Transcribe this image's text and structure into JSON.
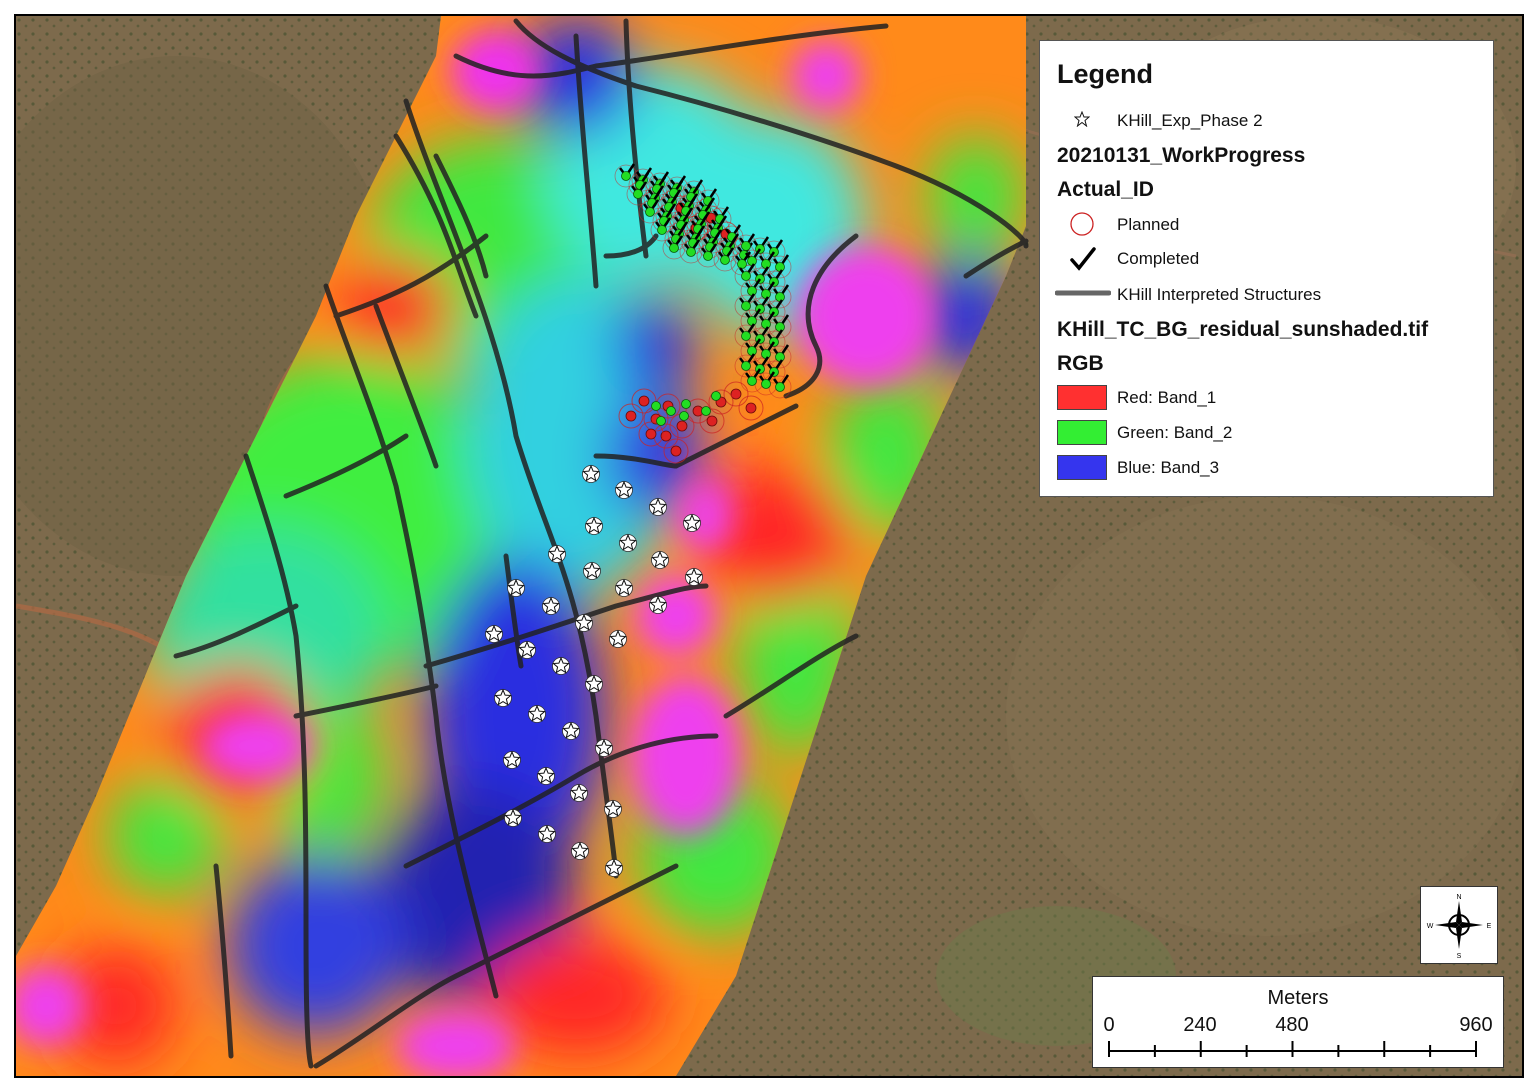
{
  "legend": {
    "title": "Legend",
    "items": [
      {
        "label": "KHill_Exp_Phase 2",
        "icon": "white-star-icon"
      },
      {
        "heading": "20210131_WorkProgress"
      },
      {
        "heading": "Actual_ID"
      },
      {
        "label": "Planned",
        "icon": "red-circle-icon"
      },
      {
        "label": "Completed",
        "icon": "check-mark-icon"
      },
      {
        "label": "KHill Interpreted Structures",
        "icon": "gray-line-icon"
      },
      {
        "heading": "KHill_TC_BG_residual_sunshaded.tif"
      },
      {
        "heading": "RGB"
      },
      {
        "label": "Red:    Band_1",
        "color": "#ff3030"
      },
      {
        "label": "Green: Band_2",
        "color": "#33ee33"
      },
      {
        "label": "Blue:   Band_3",
        "color": "#3535ee"
      }
    ]
  },
  "scale_bar": {
    "title": "Meters",
    "ticks": [
      "0",
      "240",
      "480",
      "960"
    ],
    "tick_values": [
      0,
      240,
      480,
      960
    ],
    "max_value": 960
  },
  "north_arrow": {
    "n": "N",
    "s": "S",
    "e": "E",
    "w": "W"
  },
  "colors": {
    "planned": "#dd2222",
    "completed": "#22dd22",
    "structure": "#222222",
    "star": "#ffffff"
  }
}
